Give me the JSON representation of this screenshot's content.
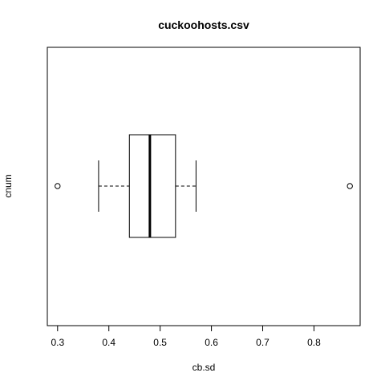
{
  "chart_data": {
    "type": "boxplot",
    "orientation": "horizontal",
    "title": "cuckoohosts.csv",
    "xlabel": "cb.sd",
    "ylabel": "cnum",
    "xlim": [
      0.28,
      0.89
    ],
    "x_ticks": [
      0.3,
      0.4,
      0.5,
      0.6,
      0.7,
      0.8
    ],
    "x_tick_labels": [
      "0.3",
      "0.4",
      "0.5",
      "0.6",
      "0.7",
      "0.8"
    ],
    "box": {
      "whisker_low": 0.38,
      "q1": 0.44,
      "median": 0.48,
      "q3": 0.53,
      "whisker_high": 0.57
    },
    "outliers": [
      0.3,
      0.87
    ],
    "grid": false,
    "legend": "none"
  }
}
